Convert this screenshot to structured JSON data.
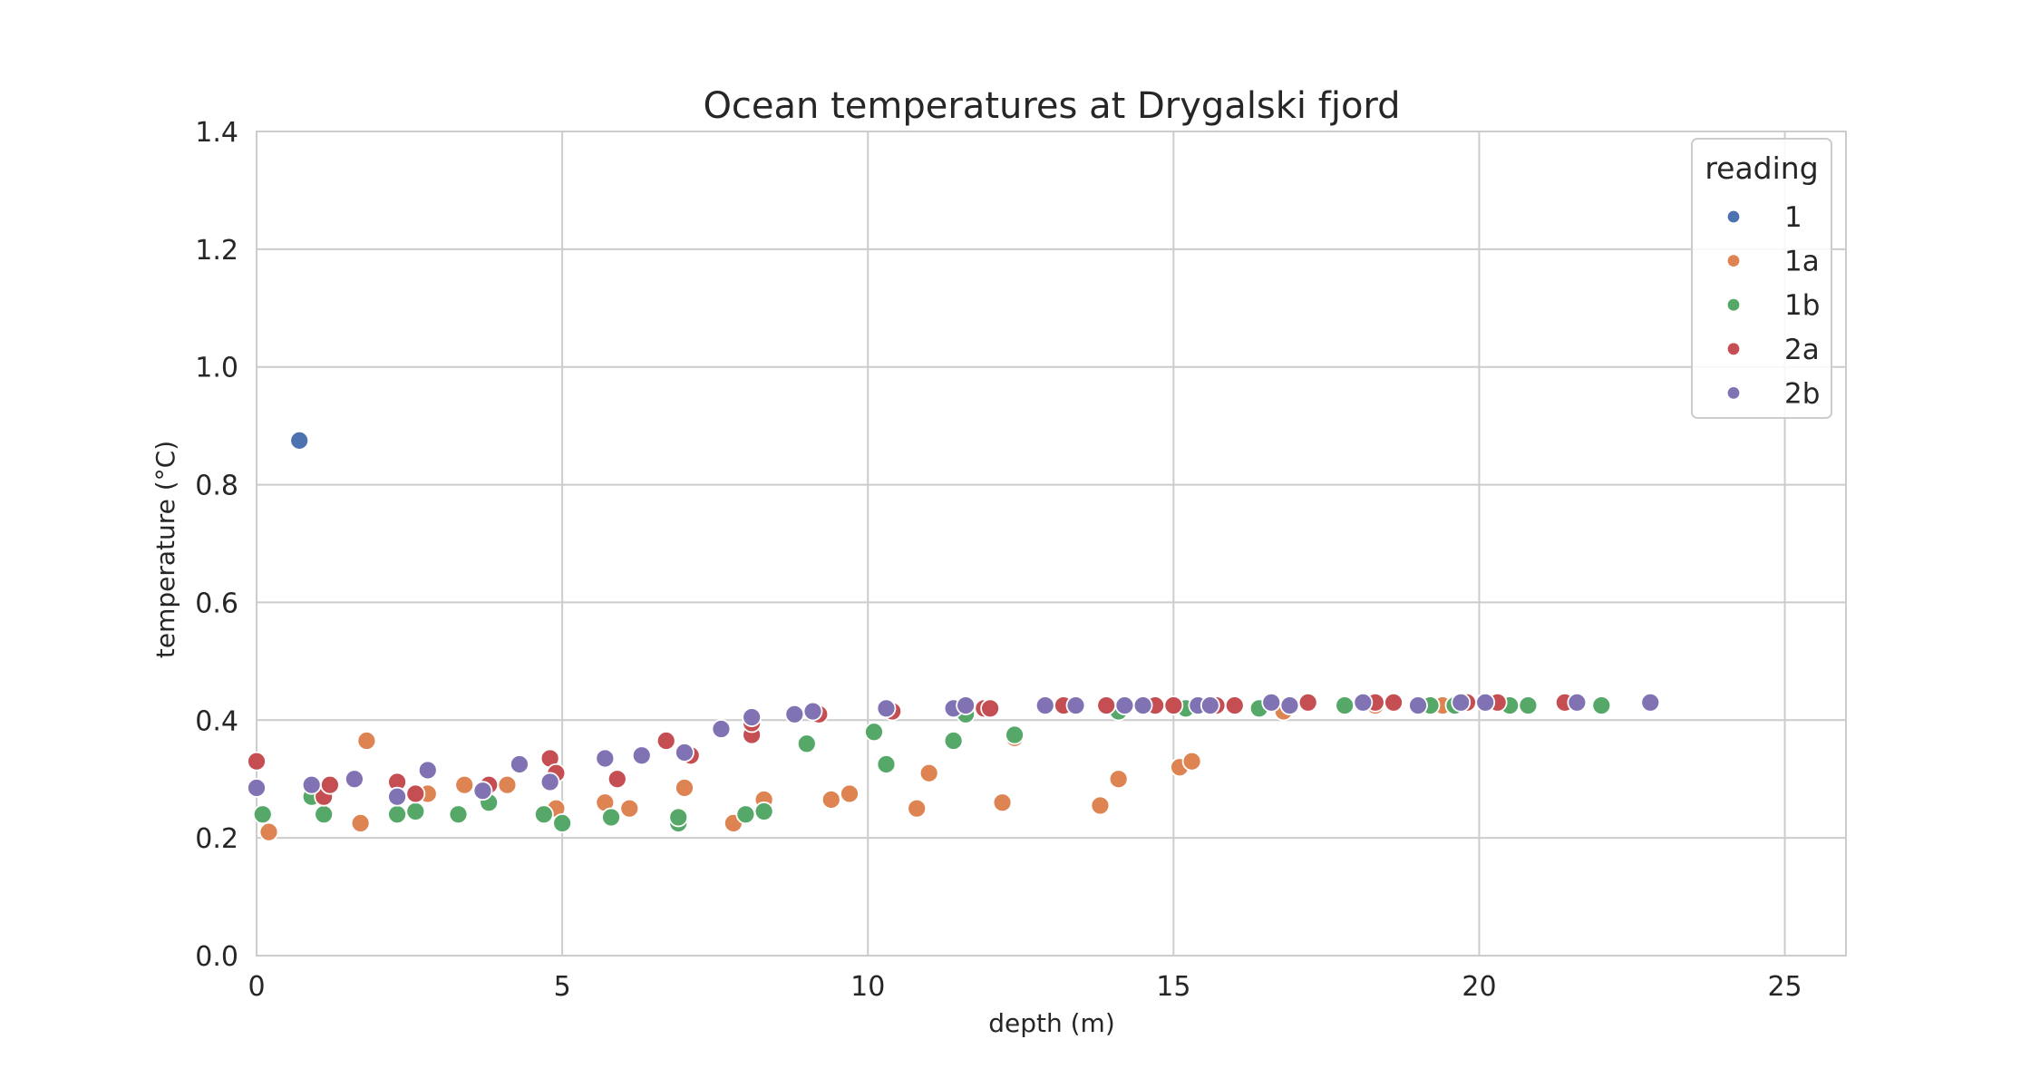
{
  "chart_data": {
    "type": "scatter",
    "title": "Ocean temperatures at Drygalski fjord",
    "xlabel": "depth (m)",
    "ylabel": "temperature (°C)",
    "xlim": [
      0,
      26
    ],
    "ylim": [
      0,
      1.4
    ],
    "xticks": [
      0,
      5,
      10,
      15,
      20,
      25
    ],
    "yticks": [
      0.0,
      0.2,
      0.4,
      0.6,
      0.8,
      1.0,
      1.2,
      1.4
    ],
    "xtick_labels": [
      "0",
      "5",
      "10",
      "15",
      "20",
      "25"
    ],
    "ytick_labels": [
      "0.0",
      "0.2",
      "0.4",
      "0.6",
      "0.8",
      "1.0",
      "1.2",
      "1.4"
    ],
    "grid": true,
    "legend": {
      "title": "reading",
      "placement": "top-right"
    },
    "series": [
      {
        "name": "1",
        "color": "#4c72b0",
        "points": [
          [
            0.7,
            0.875
          ]
        ]
      },
      {
        "name": "1a",
        "color": "#dd8452",
        "points": [
          [
            0.2,
            0.21
          ],
          [
            1.7,
            0.225
          ],
          [
            1.8,
            0.365
          ],
          [
            2.8,
            0.275
          ],
          [
            3.4,
            0.29
          ],
          [
            4.1,
            0.29
          ],
          [
            4.9,
            0.25
          ],
          [
            5.7,
            0.26
          ],
          [
            6.1,
            0.25
          ],
          [
            7.0,
            0.285
          ],
          [
            7.8,
            0.225
          ],
          [
            8.3,
            0.265
          ],
          [
            9.4,
            0.265
          ],
          [
            9.7,
            0.275
          ],
          [
            10.8,
            0.25
          ],
          [
            11.0,
            0.31
          ],
          [
            12.2,
            0.26
          ],
          [
            12.4,
            0.37
          ],
          [
            13.8,
            0.255
          ],
          [
            14.1,
            0.3
          ],
          [
            15.1,
            0.32
          ],
          [
            15.3,
            0.33
          ],
          [
            16.8,
            0.415
          ],
          [
            18.3,
            0.425
          ],
          [
            19.4,
            0.425
          ]
        ]
      },
      {
        "name": "1b",
        "color": "#55a868",
        "points": [
          [
            0.1,
            0.24
          ],
          [
            0.9,
            0.27
          ],
          [
            1.1,
            0.24
          ],
          [
            2.3,
            0.24
          ],
          [
            2.6,
            0.245
          ],
          [
            3.3,
            0.24
          ],
          [
            3.8,
            0.26
          ],
          [
            4.7,
            0.24
          ],
          [
            5.0,
            0.225
          ],
          [
            5.8,
            0.235
          ],
          [
            6.9,
            0.225
          ],
          [
            6.9,
            0.235
          ],
          [
            8.0,
            0.24
          ],
          [
            8.3,
            0.245
          ],
          [
            9.0,
            0.36
          ],
          [
            10.1,
            0.38
          ],
          [
            10.3,
            0.325
          ],
          [
            11.4,
            0.365
          ],
          [
            11.6,
            0.41
          ],
          [
            12.4,
            0.375
          ],
          [
            14.1,
            0.415
          ],
          [
            15.2,
            0.42
          ],
          [
            16.4,
            0.42
          ],
          [
            17.8,
            0.425
          ],
          [
            19.2,
            0.425
          ],
          [
            19.6,
            0.425
          ],
          [
            20.5,
            0.425
          ],
          [
            20.8,
            0.425
          ],
          [
            22.0,
            0.425
          ]
        ]
      },
      {
        "name": "2a",
        "color": "#c44e52",
        "points": [
          [
            0.0,
            0.33
          ],
          [
            1.1,
            0.27
          ],
          [
            1.2,
            0.29
          ],
          [
            2.3,
            0.295
          ],
          [
            2.6,
            0.275
          ],
          [
            3.8,
            0.29
          ],
          [
            4.8,
            0.335
          ],
          [
            4.9,
            0.31
          ],
          [
            5.9,
            0.3
          ],
          [
            6.7,
            0.365
          ],
          [
            7.1,
            0.34
          ],
          [
            8.1,
            0.375
          ],
          [
            8.1,
            0.395
          ],
          [
            9.2,
            0.41
          ],
          [
            10.4,
            0.415
          ],
          [
            11.9,
            0.42
          ],
          [
            12.0,
            0.42
          ],
          [
            13.2,
            0.425
          ],
          [
            13.9,
            0.425
          ],
          [
            14.7,
            0.425
          ],
          [
            15.0,
            0.425
          ],
          [
            15.7,
            0.425
          ],
          [
            16.0,
            0.425
          ],
          [
            17.2,
            0.43
          ],
          [
            18.3,
            0.43
          ],
          [
            18.6,
            0.43
          ],
          [
            19.8,
            0.43
          ],
          [
            20.3,
            0.43
          ],
          [
            21.4,
            0.43
          ]
        ]
      },
      {
        "name": "2b",
        "color": "#8172b3",
        "points": [
          [
            0.0,
            0.285
          ],
          [
            0.9,
            0.29
          ],
          [
            1.6,
            0.3
          ],
          [
            2.3,
            0.27
          ],
          [
            2.8,
            0.315
          ],
          [
            3.7,
            0.28
          ],
          [
            4.3,
            0.325
          ],
          [
            4.8,
            0.295
          ],
          [
            5.7,
            0.335
          ],
          [
            6.3,
            0.34
          ],
          [
            7.0,
            0.345
          ],
          [
            7.6,
            0.385
          ],
          [
            8.1,
            0.405
          ],
          [
            8.8,
            0.41
          ],
          [
            9.1,
            0.415
          ],
          [
            10.3,
            0.42
          ],
          [
            11.4,
            0.42
          ],
          [
            11.6,
            0.425
          ],
          [
            12.9,
            0.425
          ],
          [
            13.4,
            0.425
          ],
          [
            14.2,
            0.425
          ],
          [
            14.5,
            0.425
          ],
          [
            15.4,
            0.425
          ],
          [
            15.6,
            0.425
          ],
          [
            16.6,
            0.43
          ],
          [
            16.9,
            0.425
          ],
          [
            18.1,
            0.43
          ],
          [
            19.0,
            0.425
          ],
          [
            19.7,
            0.43
          ],
          [
            20.1,
            0.43
          ],
          [
            21.6,
            0.43
          ],
          [
            22.8,
            0.43
          ]
        ]
      }
    ]
  }
}
